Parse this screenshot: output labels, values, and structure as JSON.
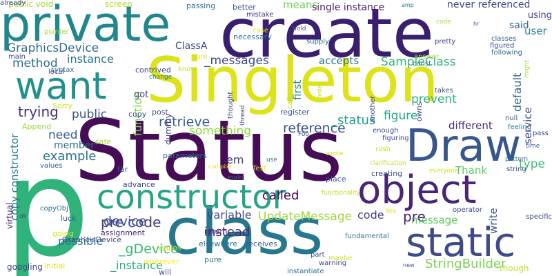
{
  "words": [
    {
      "text": "p",
      "color": "#30b37a",
      "rotate": false
    },
    {
      "text": "Status",
      "color": "#450d56",
      "rotate": false
    },
    {
      "text": "Singleton",
      "color": "#dde318",
      "rotate": false
    },
    {
      "text": "create",
      "color": "#3b1f6f",
      "rotate": false
    },
    {
      "text": "class",
      "color": "#27788e",
      "rotate": false
    },
    {
      "text": "Draw",
      "color": "#38568b",
      "rotate": false
    },
    {
      "text": "object",
      "color": "#482576",
      "rotate": false
    },
    {
      "text": "private",
      "color": "#22868d",
      "rotate": false
    },
    {
      "text": "static",
      "color": "#3f4b89",
      "rotate": false
    },
    {
      "text": "constructor",
      "color": "#25a485",
      "rotate": false
    },
    {
      "text": "want",
      "color": "#21918c",
      "rotate": false
    },
    {
      "text": "GraphicsDevice",
      "color": "#2f6b8e",
      "rotate": false
    },
    {
      "text": "_messages",
      "color": "#3f4889",
      "rotate": false
    },
    {
      "text": "trying",
      "color": "#472d7b",
      "rotate": false
    },
    {
      "text": "retrieve",
      "color": "#365c8d",
      "rotate": false
    },
    {
      "text": "reference",
      "color": "#3a548c",
      "rotate": false
    },
    {
      "text": "SampleClass",
      "color": "#34b679",
      "rotate": false
    },
    {
      "text": "pre code",
      "color": "#453882",
      "rotate": false
    },
    {
      "text": "copy constructor",
      "color": "#287c8e",
      "rotate": true
    },
    {
      "text": "_status",
      "color": "#1f9e89",
      "rotate": false
    },
    {
      "text": "pre",
      "color": "#481f70",
      "rotate": false
    },
    {
      "text": "code",
      "color": "#433e85",
      "rotate": false
    },
    {
      "text": "device",
      "color": "#3b528b",
      "rotate": false
    },
    {
      "text": "variable",
      "color": "#3e4c8a",
      "rotate": false
    },
    {
      "text": "UpdateMessage",
      "color": "#9bd93c",
      "rotate": false
    },
    {
      "text": "instead",
      "color": "#482475",
      "rotate": false
    },
    {
      "text": "StringBuilder",
      "color": "#7ad151",
      "rotate": false
    },
    {
      "text": "_gDevice",
      "color": "#38b977",
      "rotate": false
    },
    {
      "text": "_instance",
      "color": "#29af7f",
      "rotate": false
    },
    {
      "text": "need",
      "color": "#34618d",
      "rotate": false
    },
    {
      "text": "example",
      "color": "#2d718e",
      "rotate": false
    },
    {
      "text": "method",
      "color": "#2e6d8e",
      "rotate": false
    },
    {
      "text": "instance",
      "color": "#2c728e",
      "rotate": false
    },
    {
      "text": "public",
      "color": "#3b528b",
      "rotate": false
    },
    {
      "text": "called",
      "color": "#440154",
      "rotate": false
    },
    {
      "text": "message",
      "color": "#5ec962",
      "rotate": false
    },
    {
      "text": "accepts",
      "color": "#2a768e",
      "rotate": false
    },
    {
      "text": "figure",
      "color": "#21a685",
      "rotate": false
    },
    {
      "text": "different",
      "color": "#472a7a",
      "rotate": false
    },
    {
      "text": "Thank",
      "color": "#5ac864",
      "rotate": false
    },
    {
      "text": "type",
      "color": "#3dbc74",
      "rotate": false
    },
    {
      "text": "prevent",
      "color": "#2db27d",
      "rotate": false
    },
    {
      "text": "default",
      "color": "#31668e",
      "rotate": true
    },
    {
      "text": "service",
      "color": "#3e4a89",
      "rotate": true
    },
    {
      "text": "write",
      "color": "#3b528b",
      "rotate": true
    },
    {
      "text": "user",
      "color": "#287d8e",
      "rotate": false
    },
    {
      "text": "using",
      "color": "#404688",
      "rotate": false
    },
    {
      "text": "said",
      "color": "#34618d",
      "rotate": false
    },
    {
      "text": "first",
      "color": "#25848e",
      "rotate": true
    },
    {
      "text": "something",
      "color": "#8fd744",
      "rotate": false
    },
    {
      "text": "function",
      "color": "#84d44b",
      "rotate": true
    },
    {
      "text": "member",
      "color": "#2e6e8e",
      "rotate": false
    },
    {
      "text": "possible",
      "color": "#2a788e",
      "rotate": false
    },
    {
      "text": "em",
      "color": "#453781",
      "rotate": false
    },
    {
      "text": "ClassA",
      "color": "#3f4788",
      "rotate": false
    },
    {
      "text": "means",
      "color": "#6ece58",
      "rotate": false
    },
    {
      "text": "single instance",
      "color": "#481f70",
      "rotate": false
    },
    {
      "text": "never referenced",
      "color": "#3f4889",
      "rotate": false
    },
    {
      "text": "public void",
      "color": "#a0da39",
      "rotate": false
    },
    {
      "text": "screen",
      "color": "#b5de2b",
      "rotate": false
    },
    {
      "text": "passing",
      "color": "#2d708e",
      "rotate": false
    },
    {
      "text": "got",
      "color": "#3f4788",
      "rotate": false
    },
    {
      "text": "contrived",
      "color": "#404688",
      "rotate": false
    },
    {
      "text": "copy",
      "color": "#3c508b",
      "rotate": false
    },
    {
      "text": "post",
      "color": "#3a548c",
      "rotate": false
    },
    {
      "text": "register",
      "color": "#3b528b",
      "rotate": false
    },
    {
      "text": "parameters",
      "color": "#2f6c8e",
      "rotate": false
    },
    {
      "text": "dummy",
      "color": "#453882",
      "rotate": true
    },
    {
      "text": "assignment",
      "color": "#482374",
      "rotate": false
    },
    {
      "text": "GraphcisDevice",
      "color": "#3f4889",
      "rotate": false
    },
    {
      "text": "elsewhere",
      "color": "#2f6b8e",
      "rotate": false
    },
    {
      "text": "receives",
      "color": "#38598c",
      "rotate": false
    },
    {
      "text": "return",
      "color": "#443983",
      "rotate": false
    },
    {
      "text": "pure",
      "color": "#2c738e",
      "rotate": false
    },
    {
      "text": "virtual",
      "color": "#481a6c",
      "rotate": true
    },
    {
      "text": "googling",
      "color": "#3f4889",
      "rotate": false
    },
    {
      "text": "initial",
      "color": "#dde318",
      "rotate": false
    },
    {
      "text": "wherever",
      "color": "#fde725",
      "rotate": false
    },
    {
      "text": "will",
      "color": "#3b528b",
      "rotate": false
    },
    {
      "text": "replies",
      "color": "#b5de2b",
      "rotate": false
    },
    {
      "text": "luck",
      "color": "#38598c",
      "rotate": false
    },
    {
      "text": "going",
      "color": "#d8e219",
      "rotate": false
    },
    {
      "text": "far",
      "color": "#39568c",
      "rotate": false
    },
    {
      "text": "advance",
      "color": "#3e4989",
      "rotate": false
    },
    {
      "text": "values",
      "color": "#34618d",
      "rotate": false
    },
    {
      "text": "copyObj",
      "color": "#2f6c8e",
      "rotate": false
    },
    {
      "text": "ok",
      "color": "#3f4889",
      "rotate": false
    },
    {
      "text": "safe",
      "color": "#a5db36",
      "rotate": false
    },
    {
      "text": "Append",
      "color": "#9bd93c",
      "rotate": false
    },
    {
      "text": "Sorry",
      "color": "#d2e21b",
      "rotate": false
    },
    {
      "text": "syntax",
      "color": "#2f6c8e",
      "rotate": false
    },
    {
      "text": "local",
      "color": "#3e4989",
      "rotate": false
    },
    {
      "text": "main",
      "color": "#3f4788",
      "rotate": false
    },
    {
      "text": "pointer",
      "color": "#a0da39",
      "rotate": false
    },
    {
      "text": "better",
      "color": "#39568c",
      "rotate": false
    },
    {
      "text": "mistake",
      "color": "#453781",
      "rotate": false
    },
    {
      "text": "necessary",
      "color": "#2c728e",
      "rotate": false
    },
    {
      "text": "thought",
      "color": "#3b528b",
      "rotate": true
    },
    {
      "text": "thread",
      "color": "#3e4a89",
      "rotate": true
    },
    {
      "text": "still",
      "color": "#c0df25",
      "rotate": false
    },
    {
      "text": "sure",
      "color": "#d8e219",
      "rotate": false
    },
    {
      "text": "know",
      "color": "#bddf26",
      "rotate": false
    },
    {
      "text": "change",
      "color": "#2c728e",
      "rotate": false
    },
    {
      "text": "case",
      "color": "#e2e418",
      "rotate": false
    },
    {
      "text": "hold",
      "color": "#3b528b",
      "rotate": false
    },
    {
      "text": "supply",
      "color": "#2e6e8e",
      "rotate": false
    },
    {
      "text": "amp",
      "color": "#2c738e",
      "rotate": false
    },
    {
      "text": "code",
      "color": "#a2da37",
      "rotate": false
    },
    {
      "text": "hr",
      "color": "#3e4989",
      "rotate": false
    },
    {
      "text": "call",
      "color": "#b5de2b",
      "rotate": true
    },
    {
      "text": "order",
      "color": "#c8e020",
      "rotate": true
    },
    {
      "text": "const",
      "color": "#2c728e",
      "rotate": false
    },
    {
      "text": "answer",
      "color": "#a0da39",
      "rotate": false
    },
    {
      "text": "pretty",
      "color": "#3f4788",
      "rotate": false
    },
    {
      "text": "classes",
      "color": "#34618d",
      "rotate": false
    },
    {
      "text": "figured",
      "color": "#3f4889",
      "rotate": false
    },
    {
      "text": "following",
      "color": "#2f6c8e",
      "rotate": false
    },
    {
      "text": "might",
      "color": "#a0da39",
      "rotate": true
    },
    {
      "text": "takes",
      "color": "#3b528b",
      "rotate": false
    },
    {
      "text": "owns",
      "color": "#3e4a89",
      "rotate": true
    },
    {
      "text": "another",
      "color": "#3f4788",
      "rotate": true
    },
    {
      "text": "null",
      "color": "#3b528b",
      "rotate": false
    },
    {
      "text": "feeling",
      "color": "#2c728e",
      "rotate": false
    },
    {
      "text": "pass",
      "color": "#3e4989",
      "rotate": false
    },
    {
      "text": "time",
      "color": "#3b528b",
      "rotate": false
    },
    {
      "text": "pattern",
      "color": "#2c728e",
      "rotate": false
    },
    {
      "text": "string",
      "color": "#3f4889",
      "rotate": false
    },
    {
      "text": "enough",
      "color": "#3e4989",
      "rotate": false
    },
    {
      "text": "figuring",
      "color": "#3b528b",
      "rotate": false
    },
    {
      "text": "clarification",
      "color": "#bddf26",
      "rotate": false
    },
    {
      "text": "everyone",
      "color": "#d2e21b",
      "rotate": false
    },
    {
      "text": "rush",
      "color": "#c8e020",
      "rotate": false
    },
    {
      "text": "wrote",
      "color": "#dde318",
      "rotate": false
    },
    {
      "text": "creating",
      "color": "#3f4788",
      "rotate": false
    },
    {
      "text": "place",
      "color": "#3b528b",
      "rotate": false
    },
    {
      "text": "Foo",
      "color": "#3b528b",
      "rotate": false
    },
    {
      "text": "Test",
      "color": "#dde318",
      "rotate": false
    },
    {
      "text": "use",
      "color": "#2c728e",
      "rotate": false
    },
    {
      "text": "compiler",
      "color": "#dde318",
      "rotate": false
    },
    {
      "text": "make",
      "color": "#3b528b",
      "rotate": false
    },
    {
      "text": "functionality",
      "color": "#c8e020",
      "rotate": false
    },
    {
      "text": "Yes",
      "color": "#e2e418",
      "rotate": false
    },
    {
      "text": "operator",
      "color": "#3f4788",
      "rotate": false
    },
    {
      "text": "specific",
      "color": "#3e4989",
      "rotate": false
    },
    {
      "text": "part",
      "color": "#3b528b",
      "rotate": false
    },
    {
      "text": "warning",
      "color": "#3f4788",
      "rotate": false
    },
    {
      "text": "instantiate",
      "color": "#2f6c8e",
      "rotate": false
    },
    {
      "text": "fundamental",
      "color": "#2c728e",
      "rotate": false
    },
    {
      "text": "maybe",
      "color": "#c8e020",
      "rotate": false
    },
    {
      "text": "new",
      "color": "#3b528b",
      "rotate": false
    },
    {
      "text": "though",
      "color": "#c0df25",
      "rotate": false
    },
    {
      "text": "already",
      "color": "#3e4989",
      "rotate": false
    }
  ]
}
